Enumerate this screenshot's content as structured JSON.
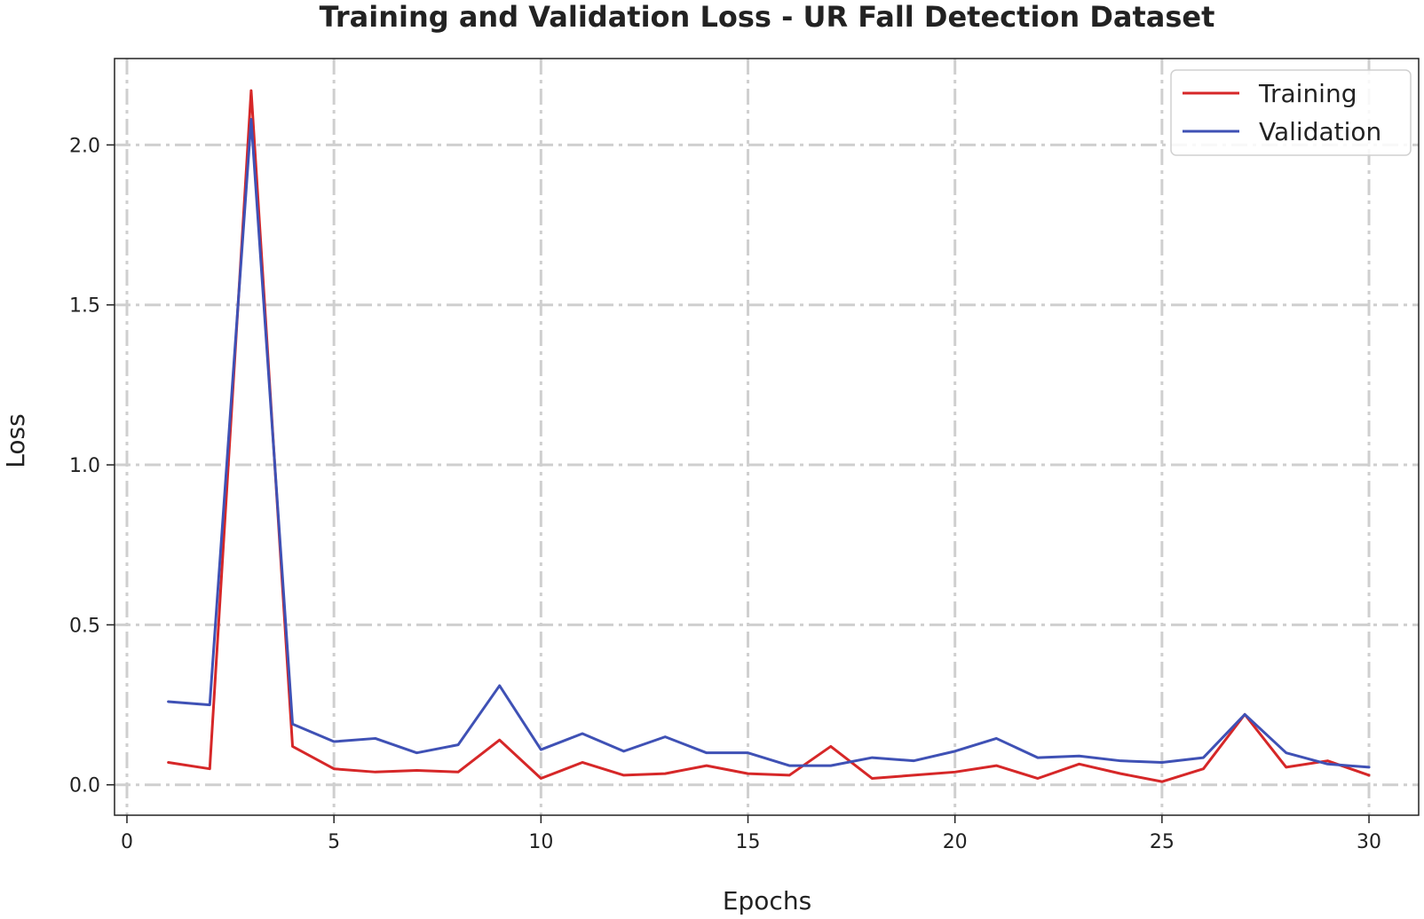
{
  "chart_data": {
    "type": "line",
    "title": "Training and Validation Loss - UR Fall Detection Dataset",
    "xlabel": "Epochs",
    "ylabel": "Loss",
    "xlim": [
      -0.3,
      31.2
    ],
    "ylim": [
      -0.095,
      2.27
    ],
    "xticks": [
      0,
      5,
      10,
      15,
      20,
      25,
      30
    ],
    "yticks": [
      0.0,
      0.5,
      1.0,
      1.5,
      2.0
    ],
    "xtick_labels": [
      "0",
      "5",
      "10",
      "15",
      "20",
      "25",
      "30"
    ],
    "ytick_labels": [
      "0.0",
      "0.5",
      "1.0",
      "1.5",
      "2.0"
    ],
    "grid": true,
    "legend_position": "top-right",
    "x": [
      1,
      2,
      3,
      4,
      5,
      6,
      7,
      8,
      9,
      10,
      11,
      12,
      13,
      14,
      15,
      16,
      17,
      18,
      19,
      20,
      21,
      22,
      23,
      24,
      25,
      26,
      27,
      28,
      29,
      30
    ],
    "series": [
      {
        "name": "Training",
        "color": "#d62728",
        "values": [
          0.07,
          0.05,
          2.17,
          0.12,
          0.05,
          0.04,
          0.045,
          0.04,
          0.14,
          0.02,
          0.07,
          0.03,
          0.035,
          0.06,
          0.035,
          0.03,
          0.12,
          0.02,
          0.03,
          0.04,
          0.06,
          0.02,
          0.065,
          0.035,
          0.01,
          0.05,
          0.22,
          0.055,
          0.075,
          0.03
        ]
      },
      {
        "name": "Validation",
        "color": "#3f51b5",
        "values": [
          0.26,
          0.25,
          2.08,
          0.19,
          0.135,
          0.145,
          0.1,
          0.125,
          0.31,
          0.11,
          0.16,
          0.105,
          0.15,
          0.1,
          0.1,
          0.06,
          0.06,
          0.085,
          0.075,
          0.105,
          0.145,
          0.085,
          0.09,
          0.075,
          0.07,
          0.085,
          0.22,
          0.1,
          0.065,
          0.055
        ]
      }
    ]
  }
}
